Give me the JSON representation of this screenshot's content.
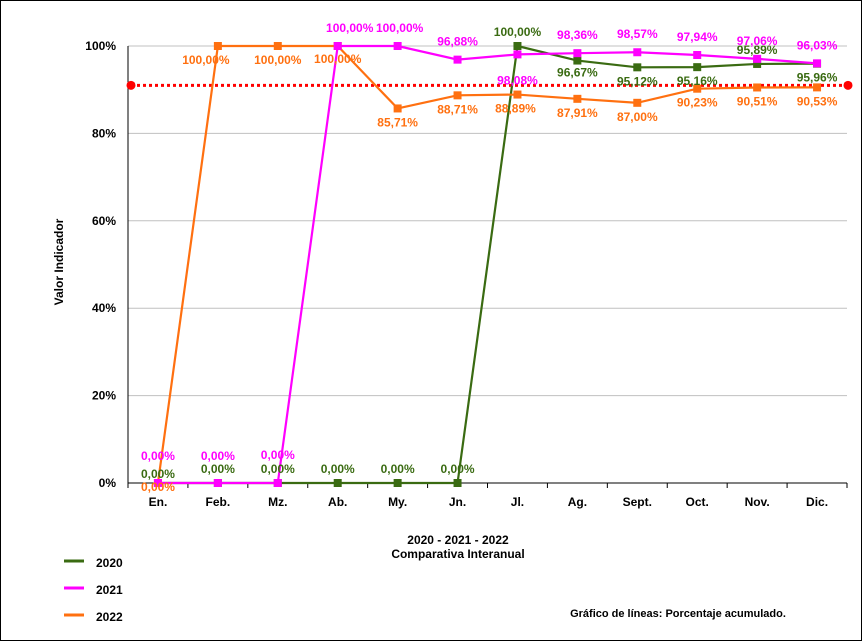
{
  "chart_data": {
    "type": "line",
    "ylabel": "Valor Indicador",
    "xtitle_line1": "2020 - 2021 - 2022",
    "xtitle_line2": "Comparativa Interanual",
    "note": "Gráfico de líneas: Porcentaje acumulado.",
    "ylim": [
      0,
      100
    ],
    "yticks": [
      0,
      20,
      40,
      60,
      80,
      100
    ],
    "ytick_labels": [
      "0%",
      "20%",
      "40%",
      "60%",
      "80%",
      "100%"
    ],
    "categories": [
      "En.",
      "Feb.",
      "Mz.",
      "Ab.",
      "My.",
      "Jn.",
      "Jl.",
      "Ag.",
      "Sept.",
      "Oct.",
      "Nov.",
      "Dic."
    ],
    "reference_line": {
      "value": 91,
      "color": "#ff0000"
    },
    "grid": true,
    "legend_position": "bottom-left",
    "series": [
      {
        "name": "2020",
        "color": "#3a6b12",
        "values": [
          0,
          0,
          0,
          0,
          0,
          0,
          100,
          96.67,
          95.12,
          95.16,
          95.89,
          95.96
        ],
        "labels": [
          "0,00%",
          "0,00%",
          "0,00%",
          "0,00%",
          "0,00%",
          "0,00%",
          "100,00%",
          "96,67%",
          "95,12%",
          "95,16%",
          "95,89%",
          "95,96%"
        ]
      },
      {
        "name": "2021",
        "color": "#ff00ff",
        "values": [
          0,
          0,
          0,
          100,
          100,
          96.88,
          98.08,
          98.36,
          98.57,
          97.94,
          97.06,
          96.03
        ],
        "labels": [
          "0,00%",
          "0,00%",
          "0,00%",
          "100,00%",
          "100,00%",
          "96,88%",
          "98,08%",
          "98,36%",
          "98,57%",
          "97,94%",
          "97,06%",
          "96,03%"
        ]
      },
      {
        "name": "2022",
        "color": "#ff7010",
        "values": [
          0,
          100,
          100,
          100,
          85.71,
          88.71,
          88.89,
          87.91,
          87.0,
          90.23,
          90.51,
          90.53
        ],
        "labels": [
          "0,00%",
          "100,00%",
          "100,00%",
          "100,00%",
          "85,71%",
          "88,71%",
          "88,89%",
          "87,91%",
          "87,00%",
          "90,23%",
          "90,51%",
          "90,53%"
        ]
      }
    ]
  }
}
